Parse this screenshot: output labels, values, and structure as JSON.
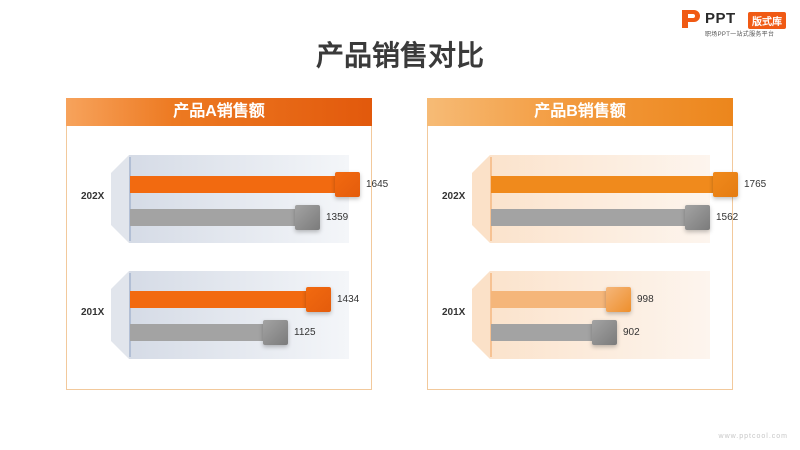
{
  "title": "产品销售对比",
  "logo": {
    "text": "PPT",
    "badge": "版式库",
    "tagline": "职场PPT一站式服务平台"
  },
  "footer": "www.pptcool.com",
  "colors": {
    "a_main": "#f26a10",
    "a_main_cap": "#e45c0c",
    "b_main": "#f08a1c",
    "b_main_cap": "#e57c12",
    "b_soft": "#f5b67a",
    "b_soft_cap": "#ee8f2c",
    "gray": "#a3a3a3",
    "gray_cap": "#7b7b7b"
  },
  "chart_data": [
    {
      "type": "bar",
      "title": "产品A销售额",
      "categories": [
        "202X",
        "201X"
      ],
      "series": [
        {
          "values": [
            1645,
            1434
          ]
        },
        {
          "values": [
            1359,
            1125
          ]
        }
      ],
      "xlim": [
        0,
        1800
      ]
    },
    {
      "type": "bar",
      "title": "产品B销售额",
      "categories": [
        "202X",
        "201X"
      ],
      "series": [
        {
          "values": [
            1765,
            998
          ]
        },
        {
          "values": [
            1562,
            902
          ]
        }
      ],
      "xlim": [
        0,
        1800
      ]
    }
  ]
}
